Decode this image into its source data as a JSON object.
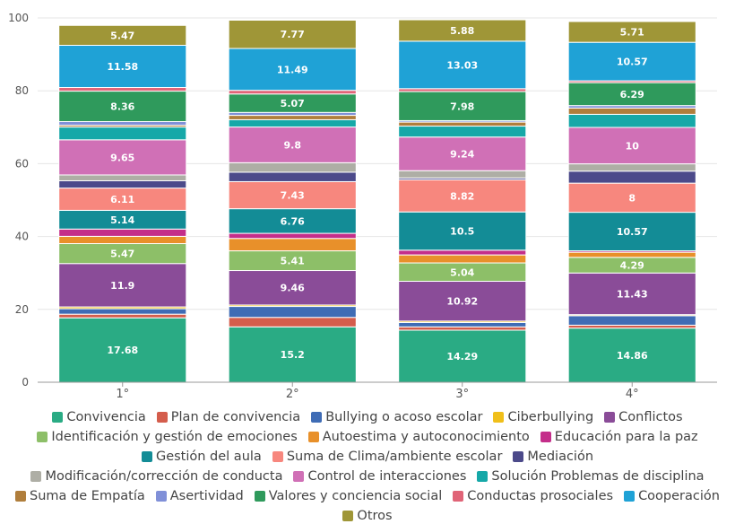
{
  "chart_data": {
    "type": "bar",
    "stacked": true,
    "categories": [
      "1°",
      "2°",
      "3°",
      "4°"
    ],
    "ylim": [
      0,
      100
    ],
    "yticks": [
      0,
      20,
      40,
      60,
      80,
      100
    ],
    "grid": true,
    "legend_position": "bottom",
    "series": [
      {
        "name": "Convivencia",
        "color": "#2aab84",
        "values": [
          17.68,
          15.2,
          14.29,
          14.86
        ],
        "labels": [
          "17.68",
          "15.2",
          "14.29",
          "14.86"
        ]
      },
      {
        "name": "Plan de convivencia",
        "color": "#d45d4c",
        "values": [
          1.0,
          2.6,
          0.9,
          0.8
        ],
        "labels": [
          "",
          "",
          "",
          ""
        ]
      },
      {
        "name": "Bullying o acoso escolar",
        "color": "#3f6cb5",
        "values": [
          1.5,
          3.0,
          1.2,
          2.6
        ],
        "labels": [
          "",
          "",
          "",
          ""
        ]
      },
      {
        "name": "Ciberbullying",
        "color": "#f0bf1a",
        "values": [
          0.5,
          0.4,
          0.4,
          0.3
        ],
        "labels": [
          "",
          "",
          "",
          ""
        ]
      },
      {
        "name": "Conflictos",
        "color": "#8a4c98",
        "values": [
          11.9,
          9.46,
          10.92,
          11.43
        ],
        "labels": [
          "11.9",
          "9.46",
          "10.92",
          "11.43"
        ]
      },
      {
        "name": "Identificación y gestión de emociones",
        "color": "#8dbf68",
        "values": [
          5.47,
          5.41,
          5.04,
          4.29
        ],
        "labels": [
          "5.47",
          "5.41",
          "5.04",
          "4.29"
        ]
      },
      {
        "name": "Autoestima y autoconocimiento",
        "color": "#e8902a",
        "values": [
          2.0,
          3.4,
          2.2,
          1.4
        ],
        "labels": [
          "",
          "",
          "",
          ""
        ]
      },
      {
        "name": "Educación para la paz",
        "color": "#c42e8a",
        "values": [
          2.0,
          1.4,
          1.3,
          0.4
        ],
        "labels": [
          "",
          "",
          "",
          ""
        ]
      },
      {
        "name": "Gestión del aula",
        "color": "#138c96",
        "values": [
          5.14,
          6.76,
          10.5,
          10.57
        ],
        "labels": [
          "5.14",
          "6.76",
          "10.5",
          "10.57"
        ]
      },
      {
        "name": "Suma de Clima/ambiente escolar",
        "color": "#f7877e",
        "values": [
          6.11,
          7.43,
          8.82,
          8.0
        ],
        "labels": [
          "6.11",
          "7.43",
          "8.82",
          "8"
        ]
      },
      {
        "name": "Mediación",
        "color": "#4c4a8a",
        "values": [
          2.0,
          2.6,
          0.5,
          3.3
        ],
        "labels": [
          "",
          "",
          "",
          ""
        ]
      },
      {
        "name": "Modificación/corrección de conducta",
        "color": "#aeaea5",
        "values": [
          1.6,
          2.6,
          2.0,
          2.0
        ],
        "labels": [
          "",
          "",
          "",
          ""
        ]
      },
      {
        "name": "Control de interacciones",
        "color": "#d070b6",
        "values": [
          9.65,
          9.8,
          9.24,
          10.0
        ],
        "labels": [
          "9.65",
          "9.8",
          "9.24",
          "10"
        ]
      },
      {
        "name": "Solución Problemas de disciplina",
        "color": "#16a8a8",
        "values": [
          3.5,
          2.0,
          3.0,
          3.6
        ],
        "labels": [
          "",
          "",
          "",
          ""
        ]
      },
      {
        "name": "Suma de Empatía",
        "color": "#b07e3c",
        "values": [
          0.5,
          1.2,
          1.1,
          1.7
        ],
        "labels": [
          "",
          "",
          "",
          ""
        ]
      },
      {
        "name": "Asertividad",
        "color": "#8090d8",
        "values": [
          1.0,
          0.8,
          0.4,
          0.7
        ],
        "labels": [
          "",
          "",
          "",
          ""
        ]
      },
      {
        "name": "Valores y conciencia social",
        "color": "#2f9a5c",
        "values": [
          8.36,
          5.07,
          7.98,
          6.29
        ],
        "labels": [
          "8.36",
          "5.07",
          "7.98",
          "6.29"
        ]
      },
      {
        "name": "Conductas prosociales",
        "color": "#e06477",
        "values": [
          1.0,
          1.0,
          0.8,
          0.5
        ],
        "labels": [
          "",
          "",
          "",
          ""
        ]
      },
      {
        "name": "Cooperación",
        "color": "#1fa2d6",
        "values": [
          11.58,
          11.49,
          13.03,
          10.57
        ],
        "labels": [
          "11.58",
          "11.49",
          "13.03",
          "10.57"
        ]
      },
      {
        "name": "Otros",
        "color": "#9f9637",
        "values": [
          5.47,
          7.77,
          5.88,
          5.71
        ],
        "labels": [
          "5.47",
          "7.77",
          "5.88",
          "5.71"
        ]
      }
    ]
  }
}
